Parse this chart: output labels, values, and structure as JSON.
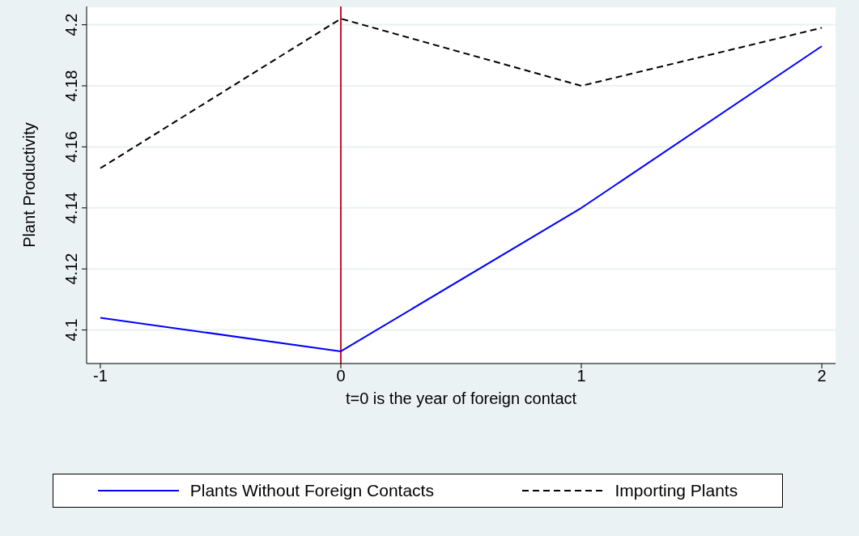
{
  "chart_data": {
    "type": "line",
    "xlabel": "t=0 is the year of foreign contact",
    "ylabel": "Plant Productivity",
    "x": [
      -1,
      0,
      1,
      2
    ],
    "series": [
      {
        "name": "Plants Without Foreign Contacts",
        "color": "#0000ff",
        "line_style": "solid",
        "values": [
          4.104,
          4.093,
          4.14,
          4.193
        ]
      },
      {
        "name": "Importing Plants",
        "color": "#000000",
        "line_style": "dashed",
        "values": [
          4.153,
          4.202,
          4.18,
          4.199
        ]
      }
    ],
    "xlim": [
      -1.057,
      2.057
    ],
    "xticks": [
      -1,
      0,
      1,
      2
    ],
    "ylim": [
      4.089,
      4.206
    ],
    "yticks": [
      4.1,
      4.12,
      4.14,
      4.16,
      4.18,
      4.2
    ],
    "ref_lines": [
      {
        "axis": "x",
        "value": 0,
        "color": "#c8102e"
      }
    ],
    "grid": "y",
    "legend": "bottom",
    "marker": "none"
  }
}
